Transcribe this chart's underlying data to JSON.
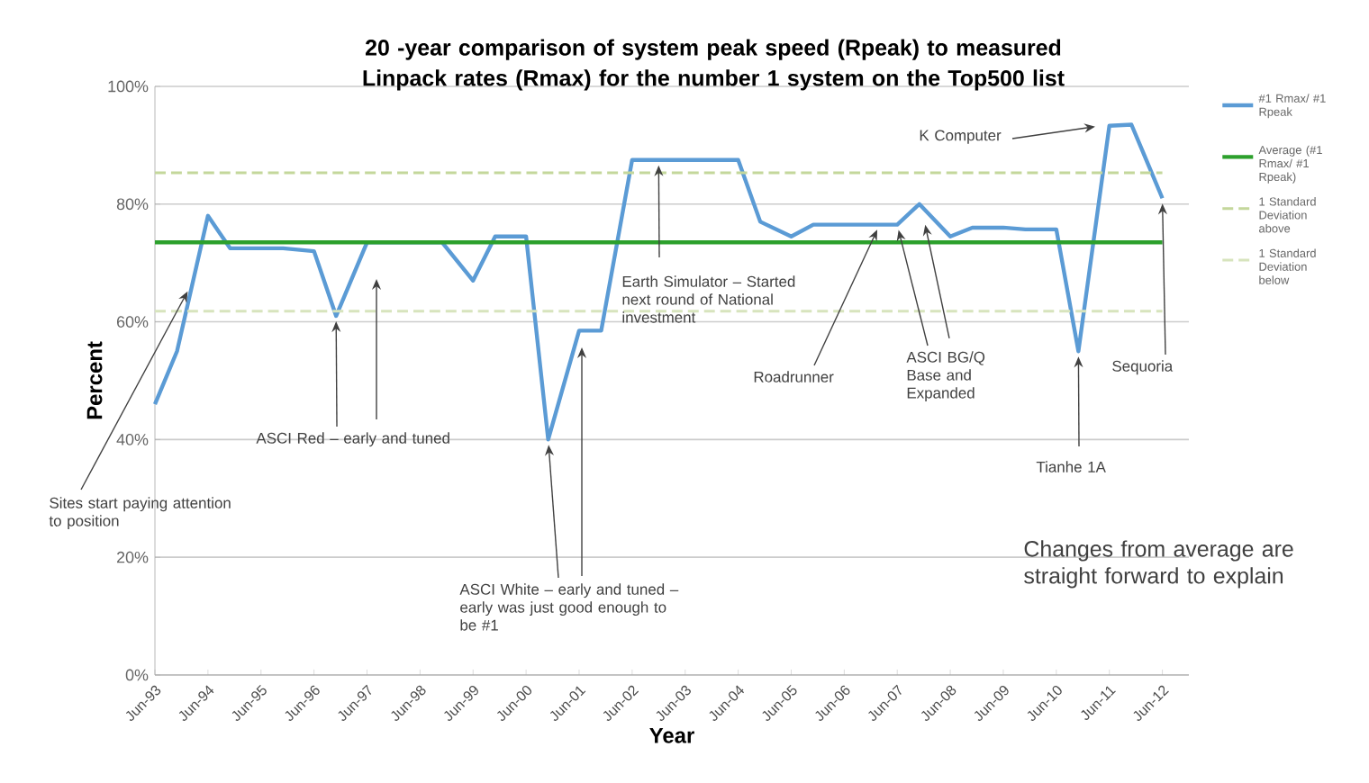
{
  "chart_data": {
    "type": "line",
    "title": "20 -year comparison of system peak speed (Rpeak) to measured Linpack rates (Rmax) for the number 1 system on the Top500 list",
    "xlabel": "Year",
    "ylabel": "Percent",
    "xlim": [
      "1993-06",
      "2012-12"
    ],
    "ylim": [
      0,
      100
    ],
    "xticks": [
      {
        "value": "1993-06",
        "label": "Jun-93"
      },
      {
        "value": "1994-06",
        "label": "Jun-94"
      },
      {
        "value": "1995-06",
        "label": "Jun-95"
      },
      {
        "value": "1996-06",
        "label": "Jun-96"
      },
      {
        "value": "1997-06",
        "label": "Jun-97"
      },
      {
        "value": "1998-06",
        "label": "Jun-98"
      },
      {
        "value": "1999-06",
        "label": "Jun-99"
      },
      {
        "value": "2000-06",
        "label": "Jun-00"
      },
      {
        "value": "2001-06",
        "label": "Jun-01"
      },
      {
        "value": "2002-06",
        "label": "Jun-02"
      },
      {
        "value": "2003-06",
        "label": "Jun-03"
      },
      {
        "value": "2004-06",
        "label": "Jun-04"
      },
      {
        "value": "2005-06",
        "label": "Jun-05"
      },
      {
        "value": "2006-06",
        "label": "Jun-06"
      },
      {
        "value": "2007-06",
        "label": "Jun-07"
      },
      {
        "value": "2008-06",
        "label": "Jun-08"
      },
      {
        "value": "2009-06",
        "label": "Jun-09"
      },
      {
        "value": "2010-06",
        "label": "Jun-10"
      },
      {
        "value": "2011-06",
        "label": "Jun-11"
      },
      {
        "value": "2012-06",
        "label": "Jun-12"
      }
    ],
    "yticks": [
      {
        "value": 0,
        "label": "0%"
      },
      {
        "value": 20,
        "label": "20%"
      },
      {
        "value": 40,
        "label": "40%"
      },
      {
        "value": 60,
        "label": "60%"
      },
      {
        "value": 80,
        "label": "80%"
      },
      {
        "value": 100,
        "label": "100%"
      }
    ],
    "grid": "y",
    "legend": "right",
    "marker": "none",
    "series": [
      {
        "name": "#1 Rmax/ #1 Rpeak",
        "color": "#5b9bd5",
        "line_style": "solid",
        "x": [
          "1993-06",
          "1993-11",
          "1994-06",
          "1994-11",
          "1995-06",
          "1995-11",
          "1996-06",
          "1996-11",
          "1997-06",
          "1997-11",
          "1998-06",
          "1998-11",
          "1999-06",
          "1999-11",
          "2000-06",
          "2000-11",
          "2001-06",
          "2001-11",
          "2002-06",
          "2002-11",
          "2003-06",
          "2003-11",
          "2004-06",
          "2004-11",
          "2005-06",
          "2005-11",
          "2006-06",
          "2006-11",
          "2007-06",
          "2007-11",
          "2008-06",
          "2008-11",
          "2009-06",
          "2009-11",
          "2010-06",
          "2010-11",
          "2011-06",
          "2011-11",
          "2012-06"
        ],
        "values": [
          46,
          55,
          78,
          72.5,
          72.5,
          72.5,
          72,
          61,
          73.5,
          73.5,
          73.5,
          73.5,
          67,
          74.5,
          74.5,
          40,
          58.5,
          58.5,
          87.5,
          87.5,
          87.5,
          87.5,
          87.5,
          77,
          74.5,
          76.5,
          76.5,
          76.5,
          76.5,
          80,
          74.5,
          76,
          76,
          75.7,
          75.7,
          55,
          93.3,
          93.5,
          81
        ]
      },
      {
        "name": "Average (#1 Rmax/ #1 Rpeak)",
        "color": "#2ca02c",
        "line_style": "solid",
        "x": [
          "1993-06",
          "2012-06"
        ],
        "values": [
          73.5,
          73.5
        ]
      },
      {
        "name": "1 Standard Deviation above",
        "color": "#c4d79b",
        "line_style": "dashed",
        "x": [
          "1993-06",
          "2012-06"
        ],
        "values": [
          85.3,
          85.3
        ]
      },
      {
        "name": "1 Standard Deviation below",
        "color": "#d7e4bd",
        "line_style": "dashed",
        "x": [
          "1993-06",
          "2012-06"
        ],
        "values": [
          61.8,
          61.8
        ]
      }
    ],
    "annotations": [
      {
        "text": "Sites start paying attention to position",
        "x": "1994-02",
        "y": 66
      },
      {
        "text": "ASCI Red – early and tuned",
        "x": "1996-11",
        "y": 61
      },
      {
        "text": "ASCI White – early and tuned – early was just good enough to be #1",
        "x": "2000-11",
        "y": 40
      },
      {
        "text": "Earth Simulator – Started next round of National investment",
        "x": "2002-12",
        "y": 87.5
      },
      {
        "text": "Roadrunner",
        "x": "2007-02",
        "y": 76.5
      },
      {
        "text": "ASCI BG/Q Base and Expanded",
        "x": "2007-06",
        "y": 76.5
      },
      {
        "text": "K Computer",
        "x": "2011-04",
        "y": 93.3
      },
      {
        "text": "Sequoria",
        "x": "2012-06",
        "y": 81
      },
      {
        "text": "Tianhe 1A",
        "x": "2010-11",
        "y": 55
      },
      "Changes from average are straight forward to explain"
    ]
  }
}
